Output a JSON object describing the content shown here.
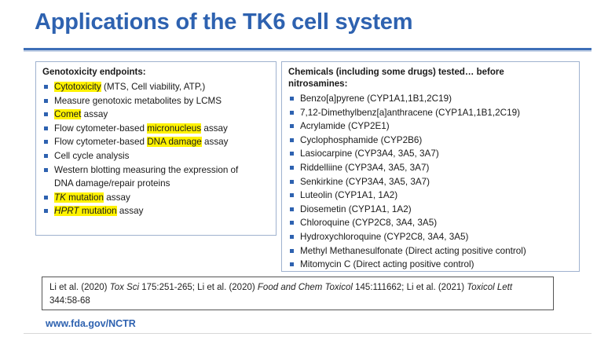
{
  "slide": {
    "title": "Applications of the TK6 cell system",
    "footer_url": "www.fda.gov/NCTR"
  },
  "left_panel": {
    "heading": "Genotoxicity endpoints:",
    "items": [
      {
        "pre": "",
        "hl": "Cytotoxicity",
        "post": " (MTS, Cell viability, ATP,)"
      },
      {
        "pre": "Measure genotoxic metabolites by LCMS",
        "hl": "",
        "post": ""
      },
      {
        "pre": "",
        "hl": "Comet",
        "post": " assay"
      },
      {
        "pre": "Flow cytometer-based ",
        "hl": "micronucleus",
        "post": " assay"
      },
      {
        "pre": "Flow cytometer-based ",
        "hl": "DNA damage",
        "post": " assay"
      },
      {
        "pre": "Cell cycle analysis",
        "hl": "",
        "post": ""
      },
      {
        "pre": "Western blotting measuring the expression of",
        "hl": "",
        "post": "",
        "cont": "DNA damage/repair proteins"
      },
      {
        "hl_italic": "TK",
        "hl": " mutation",
        "post": " assay"
      },
      {
        "hl_italic": "HPRT",
        "hl": " mutation",
        "post": " assay"
      }
    ]
  },
  "right_panel": {
    "heading_line1": "Chemicals (including some drugs) tested… before",
    "heading_line2": "nitrosamines:",
    "items": [
      "Benzo[a]pyrene (CYP1A1,1B1,2C19)",
      "7,12-Dimethylbenz[a]anthracene (CYP1A1,1B1,2C19)",
      "Acrylamide (CYP2E1)",
      "Cyclophosphamide (CYP2B6)",
      "Lasiocarpine (CYP3A4, 3A5, 3A7)",
      "Riddelliine (CYP3A4, 3A5, 3A7)",
      "Senkirkine (CYP3A4, 3A5, 3A7)",
      "Luteolin (CYP1A1, 1A2)",
      "Diosemetin (CYP1A1, 1A2)",
      "Chloroquine (CYP2C8, 3A4, 3A5)",
      "Hydroxychloroquine (CYP2C8, 3A4, 3A5)",
      "Methyl Methanesulfonate (Direct acting positive control)",
      "Mitomycin C (Direct acting positive control)"
    ]
  },
  "references": {
    "a1": "Li et al. (2020) ",
    "j1": "Tox Sci",
    "a2": " 175:251-265; Li et al. (2020) ",
    "j2": "Food and Chem Toxicol",
    "a3": " 145:111662; Li et al. (2021) ",
    "j3": "Toxicol Lett",
    "a4": "344:58-68"
  }
}
